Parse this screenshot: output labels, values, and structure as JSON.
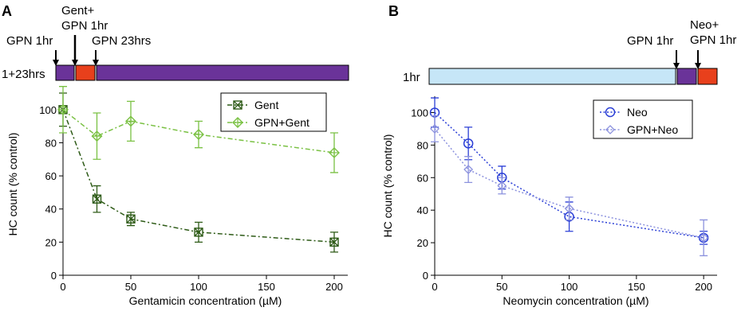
{
  "panels": [
    {
      "id": "A",
      "letter": "A",
      "timeline": {
        "label": "1+23hrs",
        "segments": [
          {
            "color": "#6a3399"
          },
          {
            "color": "#e8401c"
          },
          {
            "color": "#6a3399"
          }
        ],
        "annotations": [
          "GPN 1hr",
          "Gent+\nGPN 1hr",
          "GPN 23hrs"
        ]
      }
    },
    {
      "id": "B",
      "letter": "B",
      "timeline": {
        "label": "1hr",
        "segments": [
          {
            "color": "#c6e6f7"
          },
          {
            "color": "#6a3399"
          },
          {
            "color": "#e8401c"
          }
        ],
        "annotations": [
          "GPN 1hr",
          "Neo+\nGPN 1hr"
        ]
      }
    }
  ],
  "chart_data": [
    {
      "type": "line",
      "panel": "A",
      "xlabel": "Gentamicin concentration (µM)",
      "ylabel": "HC count (% control)",
      "xlim": [
        0,
        210
      ],
      "ylim": [
        0,
        110
      ],
      "xticks": [
        "0",
        "50",
        "100",
        "150",
        "200"
      ],
      "yticks": [
        "0",
        "20",
        "40",
        "60",
        "80",
        "100"
      ],
      "x": [
        0,
        25,
        50,
        100,
        200
      ],
      "legend_position": "top-right",
      "series": [
        {
          "name": "Gent",
          "values": [
            100,
            46,
            34,
            26,
            20
          ],
          "err": [
            10,
            8,
            4,
            6,
            6
          ],
          "color": "#2d5a16",
          "marker": "boxed-x",
          "dash": "6,3,2,3"
        },
        {
          "name": "GPN+Gent",
          "values": [
            100,
            84,
            93,
            85,
            74
          ],
          "err": [
            14,
            14,
            12,
            8,
            12
          ],
          "color": "#7ac143",
          "marker": "diamond-plus",
          "dash": "6,3,2,3"
        }
      ]
    },
    {
      "type": "line",
      "panel": "B",
      "xlabel": "Neomycin concentration (µM)",
      "ylabel": "HC count (% control)",
      "xlim": [
        0,
        210
      ],
      "ylim": [
        0,
        110
      ],
      "xticks": [
        "0",
        "50",
        "100",
        "150",
        "200"
      ],
      "yticks": [
        "0",
        "20",
        "40",
        "60",
        "80",
        "100"
      ],
      "x": [
        0,
        25,
        50,
        100,
        200
      ],
      "legend_position": "top-right",
      "series": [
        {
          "name": "Neo",
          "values": [
            100,
            81,
            60,
            36,
            23
          ],
          "err": [
            9,
            10,
            7,
            9,
            4
          ],
          "color": "#2b3fd6",
          "marker": "circle",
          "dash": "2,2.5"
        },
        {
          "name": "GPN+Neo",
          "values": [
            90,
            65,
            55,
            41,
            23
          ],
          "err": [
            8,
            8,
            5,
            7,
            11
          ],
          "color": "#8c92de",
          "marker": "diamond",
          "dash": "2,2.5"
        }
      ]
    }
  ]
}
